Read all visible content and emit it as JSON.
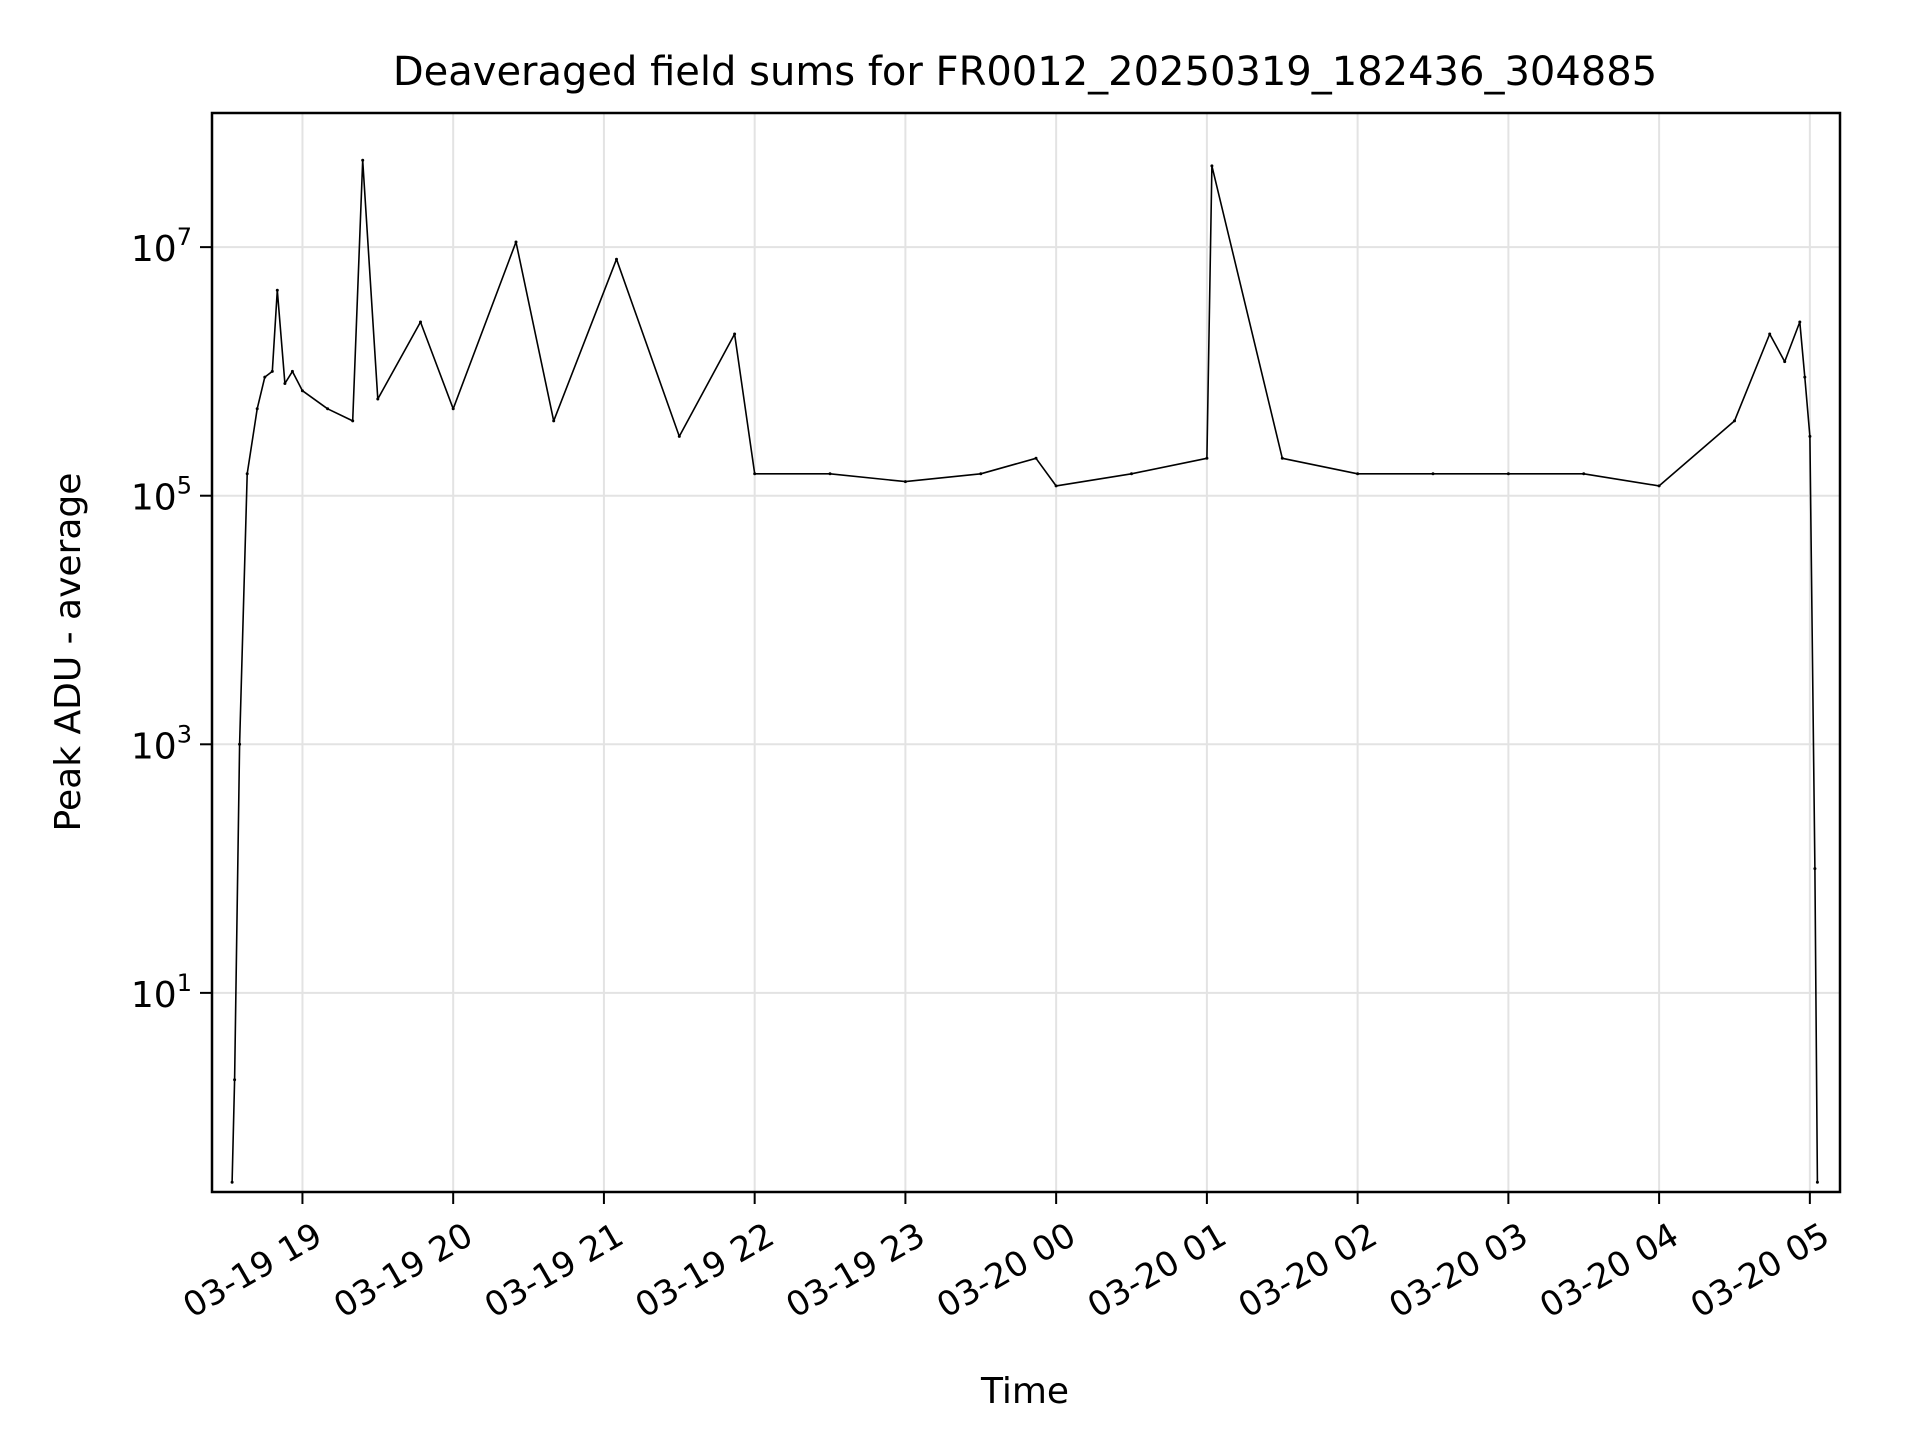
{
  "chart_data": {
    "type": "line",
    "title": "Deaveraged field sums for FR0012_20250319_182436_304885",
    "xlabel": "Time",
    "ylabel": "Peak ADU - average",
    "y_scale": "log",
    "ylim": [
      0.25,
      120000000.0
    ],
    "xlim": [
      "2025-03-19 18:24",
      "2025-03-20 05:12"
    ],
    "grid": true,
    "x_ticks": [
      {
        "t": "2025-03-19 19:00",
        "label": "03-19 19"
      },
      {
        "t": "2025-03-19 20:00",
        "label": "03-19 20"
      },
      {
        "t": "2025-03-19 21:00",
        "label": "03-19 21"
      },
      {
        "t": "2025-03-19 22:00",
        "label": "03-19 22"
      },
      {
        "t": "2025-03-19 23:00",
        "label": "03-19 23"
      },
      {
        "t": "2025-03-20 00:00",
        "label": "03-20 00"
      },
      {
        "t": "2025-03-20 01:00",
        "label": "03-20 01"
      },
      {
        "t": "2025-03-20 02:00",
        "label": "03-20 02"
      },
      {
        "t": "2025-03-20 03:00",
        "label": "03-20 03"
      },
      {
        "t": "2025-03-20 04:00",
        "label": "03-20 04"
      },
      {
        "t": "2025-03-20 05:00",
        "label": "03-20 05"
      }
    ],
    "y_ticks": [
      {
        "value": 10,
        "base": "10",
        "exp": "1"
      },
      {
        "value": 1000,
        "base": "10",
        "exp": "3"
      },
      {
        "value": 100000,
        "base": "10",
        "exp": "5"
      },
      {
        "value": 10000000,
        "base": "10",
        "exp": "7"
      }
    ],
    "series": [
      {
        "color": "#000000",
        "x": [
          "2025-03-19 18:32",
          "2025-03-19 18:33",
          "2025-03-19 18:35",
          "2025-03-19 18:38",
          "2025-03-19 18:42",
          "2025-03-19 18:45",
          "2025-03-19 18:48",
          "2025-03-19 18:50",
          "2025-03-19 18:53",
          "2025-03-19 18:56",
          "2025-03-19 19:00",
          "2025-03-19 19:10",
          "2025-03-19 19:20",
          "2025-03-19 19:24",
          "2025-03-19 19:30",
          "2025-03-19 19:47",
          "2025-03-19 20:00",
          "2025-03-19 20:25",
          "2025-03-19 20:40",
          "2025-03-19 21:05",
          "2025-03-19 21:30",
          "2025-03-19 21:52",
          "2025-03-19 22:00",
          "2025-03-19 22:30",
          "2025-03-19 23:00",
          "2025-03-19 23:30",
          "2025-03-19 23:52",
          "2025-03-20 00:00",
          "2025-03-20 00:30",
          "2025-03-20 01:00",
          "2025-03-20 01:02",
          "2025-03-20 01:30",
          "2025-03-20 02:00",
          "2025-03-20 02:30",
          "2025-03-20 03:00",
          "2025-03-20 03:30",
          "2025-03-20 04:00",
          "2025-03-20 04:30",
          "2025-03-20 04:44",
          "2025-03-20 04:50",
          "2025-03-20 04:56",
          "2025-03-20 04:58",
          "2025-03-20 05:00",
          "2025-03-20 05:02",
          "2025-03-20 05:03"
        ],
        "y": [
          0.3,
          2,
          1000,
          150000,
          500000,
          900000,
          1000000,
          4500000,
          800000,
          1000000,
          700000,
          500000,
          400000,
          50000000,
          600000,
          2500000,
          500000,
          11000000,
          400000,
          8000000,
          300000,
          2000000,
          150000,
          150000,
          130000,
          150000,
          200000,
          120000,
          150000,
          200000,
          45000000,
          200000,
          150000,
          150000,
          150000,
          150000,
          120000,
          400000,
          2000000,
          1200000,
          2500000,
          900000,
          300000,
          100,
          0.3
        ]
      }
    ]
  }
}
